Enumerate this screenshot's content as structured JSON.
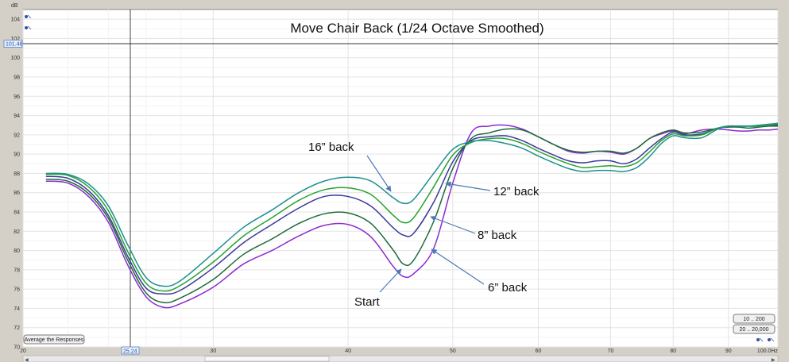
{
  "chart_data": {
    "type": "line",
    "title": "Move Chair Back (1/24 Octave Smoothed)",
    "ylabel": "dB",
    "xlabel": "",
    "xunit": "Hz",
    "xlim": [
      20,
      100
    ],
    "ylim": [
      70,
      105
    ],
    "grid": true,
    "x_ticks": [
      20,
      30,
      40,
      50,
      60,
      70,
      80,
      90,
      100
    ],
    "x_tick_labels": [
      "20",
      "30",
      "40",
      "50",
      "60",
      "70",
      "80",
      "90",
      "100.0Hz"
    ],
    "y_ticks": [
      70,
      72,
      74,
      76,
      78,
      80,
      82,
      84,
      86,
      88,
      90,
      92,
      94,
      96,
      98,
      100,
      102,
      104
    ],
    "y_tick_labels": [
      "70",
      "72",
      "74",
      "76",
      "78",
      "80",
      "82",
      "84",
      "86",
      "88",
      "90",
      "92",
      "94",
      "96",
      "98",
      "100",
      "102",
      "104"
    ],
    "x": [
      21,
      22,
      23,
      24,
      25,
      26,
      27,
      28,
      30,
      32,
      34,
      36,
      38,
      40,
      42,
      44,
      45,
      46,
      48,
      50,
      52,
      54,
      56,
      58,
      60,
      62,
      64,
      66,
      68,
      70,
      72,
      74,
      76,
      78,
      80,
      82,
      85,
      88,
      90,
      92,
      94,
      96,
      98,
      100
    ],
    "series": [
      {
        "color": "#8b2bd0",
        "annotation": "Start",
        "values": [
          87.2,
          87.0,
          85.6,
          82.9,
          78.5,
          75.2,
          74.1,
          74.5,
          76.2,
          78.6,
          80.0,
          81.5,
          82.6,
          82.7,
          81.4,
          78.4,
          77.3,
          77.6,
          80.2,
          87.0,
          92.2,
          92.9,
          93.0,
          92.6,
          91.8,
          91.0,
          90.3,
          90.1,
          90.3,
          90.2,
          90.0,
          90.6,
          91.6,
          92.1,
          92.4,
          92.1,
          92.5,
          92.6,
          92.5,
          92.4,
          92.4,
          92.5,
          92.5,
          92.6
        ]
      },
      {
        "color": "#1f6b3a",
        "annotation": "6” back",
        "values": [
          87.4,
          87.2,
          85.9,
          83.3,
          79.0,
          75.6,
          74.6,
          75.1,
          77.0,
          79.6,
          81.2,
          82.8,
          83.8,
          83.9,
          82.8,
          80.1,
          78.6,
          79.0,
          83.0,
          88.5,
          91.6,
          92.2,
          92.6,
          92.5,
          91.8,
          91.0,
          90.4,
          90.2,
          90.3,
          90.3,
          90.1,
          90.6,
          91.6,
          92.2,
          92.5,
          92.2,
          92.3,
          92.7,
          92.8,
          92.8,
          92.7,
          92.8,
          92.9,
          92.9
        ]
      },
      {
        "color": "#3a3a9a",
        "annotation": "8” back",
        "values": [
          87.7,
          87.5,
          86.2,
          83.6,
          79.4,
          76.1,
          75.5,
          75.9,
          78.2,
          80.8,
          82.7,
          84.4,
          85.6,
          85.6,
          84.6,
          82.4,
          81.6,
          81.8,
          85.0,
          89.2,
          91.4,
          91.8,
          91.9,
          91.4,
          90.6,
          89.9,
          89.3,
          89.1,
          89.3,
          89.3,
          89.0,
          89.5,
          90.6,
          91.6,
          92.3,
          92.0,
          92.1,
          92.7,
          92.9,
          92.9,
          92.9,
          92.9,
          93.0,
          93.0
        ]
      },
      {
        "color": "#27a22e",
        "annotation": "12” back",
        "values": [
          87.9,
          87.8,
          86.6,
          84.1,
          79.9,
          76.6,
          75.8,
          76.4,
          78.8,
          81.5,
          83.4,
          85.2,
          86.3,
          86.5,
          85.8,
          83.7,
          82.9,
          83.4,
          86.6,
          89.9,
          91.2,
          91.6,
          91.6,
          91.1,
          90.3,
          89.6,
          89.0,
          88.6,
          88.7,
          88.8,
          88.7,
          89.1,
          90.2,
          91.4,
          92.1,
          91.9,
          92.0,
          92.7,
          92.9,
          92.9,
          92.9,
          92.9,
          93.0,
          93.1
        ]
      },
      {
        "color": "#1e8f8f",
        "annotation": "16” back",
        "values": [
          88.0,
          87.9,
          86.9,
          84.6,
          80.6,
          77.2,
          76.3,
          76.9,
          79.7,
          82.4,
          84.2,
          86.0,
          87.2,
          87.6,
          87.2,
          85.5,
          84.9,
          85.3,
          88.0,
          90.5,
          91.3,
          91.4,
          91.1,
          90.6,
          89.8,
          89.1,
          88.5,
          88.2,
          88.3,
          88.3,
          88.2,
          88.6,
          89.7,
          91.1,
          91.9,
          91.7,
          91.7,
          92.6,
          92.9,
          92.9,
          92.9,
          93.0,
          93.1,
          93.2
        ]
      }
    ],
    "annotations": [
      "16” back",
      "12” back",
      "8” back",
      "6” back",
      "Start"
    ],
    "cursor": {
      "x_label": "25.24",
      "y_label": "101.48"
    }
  },
  "ui": {
    "average_button": "Average the Responses",
    "range_button_1": "10 .. 200",
    "range_button_2": "20 .. 20,000"
  }
}
